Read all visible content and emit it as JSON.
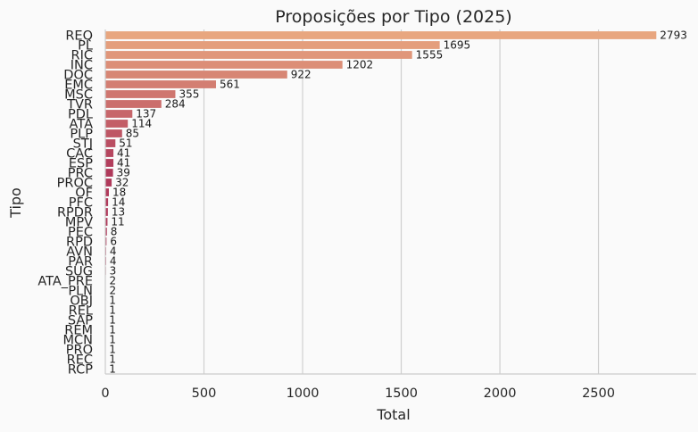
{
  "chart_data": {
    "type": "bar",
    "orientation": "horizontal",
    "title": "Proposições por Tipo (2025)",
    "xlabel": "Total",
    "ylabel": "Tipo",
    "xlim": [
      0,
      2950
    ],
    "xticks": [
      0,
      500,
      1000,
      1500,
      2000,
      2500
    ],
    "grid": "vertical",
    "categories": [
      "REQ",
      "PL",
      "RIC",
      "INC",
      "DOC",
      "EMC",
      "MSC",
      "TVR",
      "PDL",
      "ATA",
      "PLP",
      "STJ",
      "CAC",
      "ESP",
      "PRC",
      "PROC",
      "OF",
      "PFC",
      "RPDR",
      "MPV",
      "PEC",
      "RPD",
      "AVN",
      "PAR",
      "SUG",
      "ATA_PRE",
      "PLN",
      "OBJ",
      "REL",
      "SAP",
      "REM",
      "MCN",
      "PRO",
      "REC",
      "RCP"
    ],
    "values": [
      2793,
      1695,
      1555,
      1202,
      922,
      561,
      355,
      284,
      137,
      114,
      85,
      51,
      41,
      41,
      39,
      32,
      18,
      14,
      13,
      11,
      8,
      6,
      4,
      4,
      3,
      2,
      2,
      1,
      1,
      1,
      1,
      1,
      1,
      1,
      1
    ],
    "colors": {
      "start": "#e8a67f",
      "end": "#b03a5b"
    }
  }
}
